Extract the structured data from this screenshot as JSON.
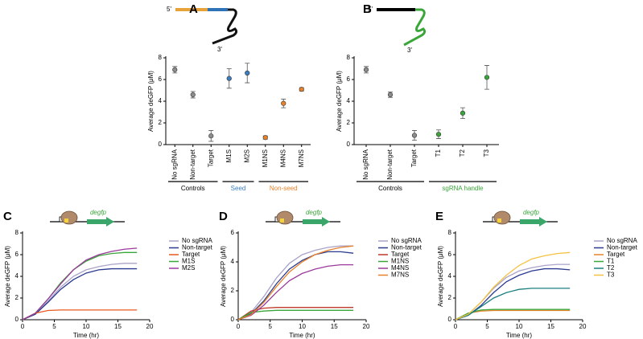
{
  "chart_data": [
    {
      "type": "dot",
      "panel": "A",
      "annotations": [
        "5'",
        "3'"
      ],
      "ylabel": "Average deGFP (μM)",
      "ylim": [
        0,
        8
      ],
      "yticks": [
        0,
        2,
        4,
        6,
        8
      ],
      "groups": [
        {
          "label": "Controls",
          "label_color": "#000000",
          "color": "#8c8c8c",
          "categories": [
            "No sgRNA",
            "Non-target",
            "Target"
          ],
          "values": [
            6.9,
            4.6,
            0.8
          ],
          "errors": [
            0.3,
            0.3,
            0.5
          ]
        },
        {
          "label": "Seed",
          "label_color": "#3a7dc0",
          "color": "#3a7dc0",
          "categories": [
            "M1S",
            "M2S"
          ],
          "values": [
            6.1,
            6.6
          ],
          "errors": [
            0.9,
            0.9
          ]
        },
        {
          "label": "Non-seed",
          "label_color": "#e8822a",
          "color": "#e8822a",
          "categories": [
            "M1NS",
            "M4NS",
            "M7NS"
          ],
          "values": [
            0.65,
            3.8,
            5.1
          ],
          "errors": [
            0.15,
            0.4,
            0.15
          ]
        }
      ]
    },
    {
      "type": "dot",
      "panel": "B",
      "annotations": [
        "5'",
        "3'"
      ],
      "ylabel": "Average deGFP (μM)",
      "ylim": [
        0,
        8
      ],
      "yticks": [
        0,
        2,
        4,
        6,
        8
      ],
      "groups": [
        {
          "label": "Controls",
          "label_color": "#000000",
          "color": "#8c8c8c",
          "categories": [
            "No sgRNA",
            "Non-target",
            "Target"
          ],
          "values": [
            6.9,
            4.6,
            0.85
          ],
          "errors": [
            0.3,
            0.25,
            0.45
          ]
        },
        {
          "label": "sgRNA handle",
          "label_color": "#3aa63a",
          "color": "#3aa63a",
          "categories": [
            "T1",
            "T2",
            "T3"
          ],
          "values": [
            0.95,
            2.9,
            6.2
          ],
          "errors": [
            0.4,
            0.5,
            1.1
          ]
        }
      ]
    },
    {
      "type": "line",
      "panel": "C",
      "annotations": [
        "degfp"
      ],
      "xlabel": "Time (hr)",
      "ylabel": "Average deGFP (μM)",
      "xlim": [
        0,
        20
      ],
      "xticks": [
        0,
        5,
        10,
        15,
        20
      ],
      "ylim": [
        0,
        8
      ],
      "yticks": [
        0,
        2,
        4,
        6,
        8
      ],
      "x": [
        0,
        2,
        4,
        6,
        8,
        10,
        12,
        14,
        16,
        18
      ],
      "series": [
        {
          "name": "No sgRNA",
          "color": "#a9a3c9",
          "values": [
            0,
            0.5,
            1.7,
            3.0,
            4.0,
            4.6,
            4.9,
            5.1,
            5.2,
            5.2
          ]
        },
        {
          "name": "Non-target",
          "color": "#2b3a8f",
          "values": [
            0,
            0.5,
            1.6,
            2.8,
            3.7,
            4.3,
            4.6,
            4.7,
            4.7,
            4.7
          ]
        },
        {
          "name": "Target",
          "color": "#e85a1c",
          "values": [
            0,
            0.6,
            0.85,
            0.9,
            0.9,
            0.9,
            0.9,
            0.9,
            0.9,
            0.9
          ]
        },
        {
          "name": "M1S",
          "color": "#3aa63a",
          "values": [
            0,
            0.6,
            1.9,
            3.4,
            4.6,
            5.4,
            5.9,
            6.1,
            6.2,
            6.2
          ]
        },
        {
          "name": "M2S",
          "color": "#9b3a9b",
          "values": [
            0,
            0.6,
            1.9,
            3.3,
            4.6,
            5.5,
            6.0,
            6.3,
            6.5,
            6.6
          ]
        }
      ]
    },
    {
      "type": "line",
      "panel": "D",
      "annotations": [
        "degfp"
      ],
      "xlabel": "Time (hr)",
      "ylabel": "Average deGFP (μM)",
      "xlim": [
        0,
        20
      ],
      "xticks": [
        0,
        5,
        10,
        15,
        20
      ],
      "ylim": [
        0,
        6
      ],
      "yticks": [
        0,
        2,
        4,
        6
      ],
      "x": [
        0,
        2,
        4,
        6,
        8,
        10,
        12,
        14,
        16,
        18
      ],
      "series": [
        {
          "name": "No sgRNA",
          "color": "#a9a3c9",
          "values": [
            0,
            0.5,
            1.6,
            2.9,
            3.9,
            4.5,
            4.8,
            5.0,
            5.1,
            5.1
          ]
        },
        {
          "name": "Non-target",
          "color": "#2b3a8f",
          "values": [
            0,
            0.4,
            1.3,
            2.5,
            3.5,
            4.1,
            4.5,
            4.7,
            4.7,
            4.6
          ]
        },
        {
          "name": "Target",
          "color": "#c0392b",
          "values": [
            0,
            0.6,
            0.8,
            0.85,
            0.85,
            0.85,
            0.85,
            0.85,
            0.85,
            0.85
          ]
        },
        {
          "name": "M1NS",
          "color": "#3aa63a",
          "values": [
            0,
            0.5,
            0.6,
            0.65,
            0.65,
            0.65,
            0.65,
            0.65,
            0.65,
            0.65
          ]
        },
        {
          "name": "M4NS",
          "color": "#9b3a9b",
          "values": [
            0,
            0.3,
            1.0,
            1.9,
            2.7,
            3.2,
            3.5,
            3.7,
            3.8,
            3.8
          ]
        },
        {
          "name": "M7NS",
          "color": "#e8822a",
          "values": [
            0,
            0.35,
            1.2,
            2.3,
            3.3,
            4.0,
            4.5,
            4.8,
            5.0,
            5.1
          ]
        }
      ]
    },
    {
      "type": "line",
      "panel": "E",
      "annotations": [
        "degfp"
      ],
      "xlabel": "Time (hr)",
      "ylabel": "Average deGFP (μM)",
      "xlim": [
        0,
        20
      ],
      "xticks": [
        0,
        5,
        10,
        15,
        20
      ],
      "ylim": [
        0,
        8
      ],
      "yticks": [
        0,
        2,
        4,
        6,
        8
      ],
      "x": [
        0,
        2,
        4,
        6,
        8,
        10,
        12,
        14,
        16,
        18
      ],
      "series": [
        {
          "name": "No sgRNA",
          "color": "#a9a3c9",
          "values": [
            0,
            0.5,
            1.6,
            2.9,
            3.9,
            4.5,
            4.8,
            5.0,
            5.1,
            5.1
          ]
        },
        {
          "name": "Non-target",
          "color": "#2b3a8f",
          "values": [
            0,
            0.4,
            1.3,
            2.5,
            3.5,
            4.1,
            4.5,
            4.7,
            4.7,
            4.6
          ]
        },
        {
          "name": "Target",
          "color": "#e8822a",
          "values": [
            0,
            0.6,
            0.8,
            0.85,
            0.85,
            0.85,
            0.85,
            0.85,
            0.85,
            0.85
          ]
        },
        {
          "name": "T1",
          "color": "#3aa63a",
          "values": [
            0,
            0.6,
            0.9,
            0.95,
            0.95,
            0.95,
            0.95,
            0.95,
            0.95,
            0.95
          ]
        },
        {
          "name": "T2",
          "color": "#1a7f7f",
          "values": [
            0,
            0.4,
            1.2,
            2.0,
            2.5,
            2.8,
            2.9,
            2.9,
            2.9,
            2.9
          ]
        },
        {
          "name": "T3",
          "color": "#f5c242",
          "values": [
            0,
            0.5,
            1.6,
            3.0,
            4.1,
            5.0,
            5.6,
            5.9,
            6.1,
            6.2
          ]
        }
      ]
    }
  ]
}
